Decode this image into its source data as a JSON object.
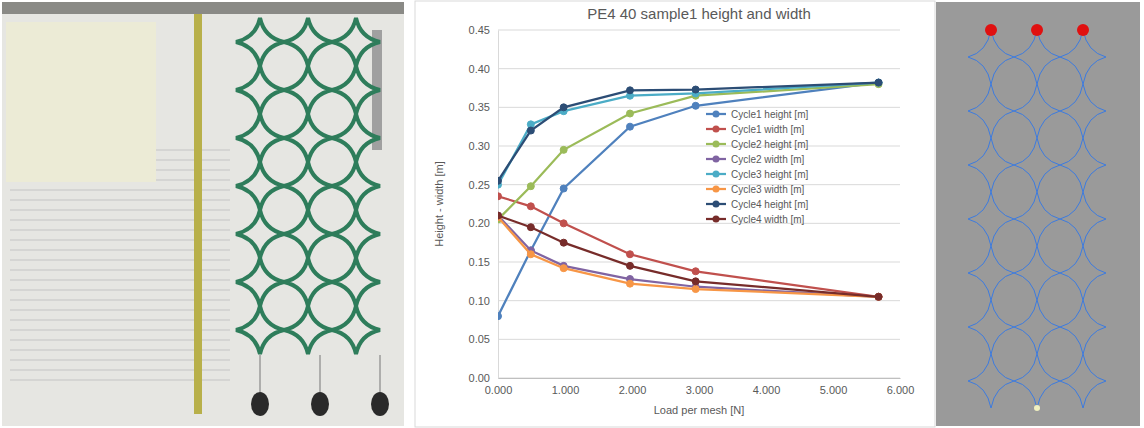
{
  "chart_data": {
    "type": "line",
    "title": "PE4 40 sample1 height and width",
    "x_label": "Load per mesh [N]",
    "y_label": "Height - width [m]",
    "x": [
      0,
      0.49,
      0.98,
      1.97,
      2.95,
      5.68
    ],
    "series": [
      {
        "name": "Cycle1 height [m]",
        "color": "#4f81bd",
        "values": [
          0.08,
          0.165,
          0.245,
          0.325,
          0.352,
          0.382
        ]
      },
      {
        "name": "Cycle1 width [m]",
        "color": "#c0504d",
        "values": [
          0.235,
          0.222,
          0.2,
          0.16,
          0.138,
          0.105
        ]
      },
      {
        "name": "Cycle2 height [m]",
        "color": "#9bbb59",
        "values": [
          0.205,
          0.248,
          0.295,
          0.342,
          0.365,
          0.38
        ]
      },
      {
        "name": "Cycle2 width [m]",
        "color": "#8064a2",
        "values": [
          0.21,
          0.165,
          0.145,
          0.128,
          0.118,
          0.105
        ]
      },
      {
        "name": "Cycle3 height [m]",
        "color": "#4bacc6",
        "values": [
          0.25,
          0.328,
          0.345,
          0.365,
          0.368,
          0.382
        ]
      },
      {
        "name": "Cycle3 width [m]",
        "color": "#f79646",
        "values": [
          0.208,
          0.16,
          0.142,
          0.122,
          0.115,
          0.105
        ]
      },
      {
        "name": "Cycle4 height [m]",
        "color": "#2c4d75",
        "values": [
          0.255,
          0.32,
          0.35,
          0.372,
          0.373,
          0.382
        ]
      },
      {
        "name": "Cycle4 width [m]",
        "color": "#772c2a",
        "values": [
          0.21,
          0.195,
          0.175,
          0.145,
          0.125,
          0.105
        ]
      }
    ],
    "xlim": [
      0,
      6
    ],
    "xticks": [
      {
        "value": 0,
        "label": "0.000"
      },
      {
        "value": 1,
        "label": "1.000"
      },
      {
        "value": 2,
        "label": "2.000"
      },
      {
        "value": 3,
        "label": "3.000"
      },
      {
        "value": 4,
        "label": "4.000"
      },
      {
        "value": 5,
        "label": "5.000"
      },
      {
        "value": 6,
        "label": "6.000"
      }
    ],
    "ylim": [
      0,
      0.45
    ],
    "yticks": [
      {
        "value": 0,
        "label": "0.00"
      },
      {
        "value": 0.05,
        "label": "0.05"
      },
      {
        "value": 0.1,
        "label": "0.10"
      },
      {
        "value": 0.15,
        "label": "0.15"
      },
      {
        "value": 0.2,
        "label": "0.20"
      },
      {
        "value": 0.25,
        "label": "0.25"
      },
      {
        "value": 0.3,
        "label": "0.30"
      },
      {
        "value": 0.35,
        "label": "0.35"
      },
      {
        "value": 0.4,
        "label": "0.40"
      },
      {
        "value": 0.45,
        "label": "0.45"
      }
    ],
    "grid": true,
    "legend": "right",
    "marker": "circle"
  }
}
